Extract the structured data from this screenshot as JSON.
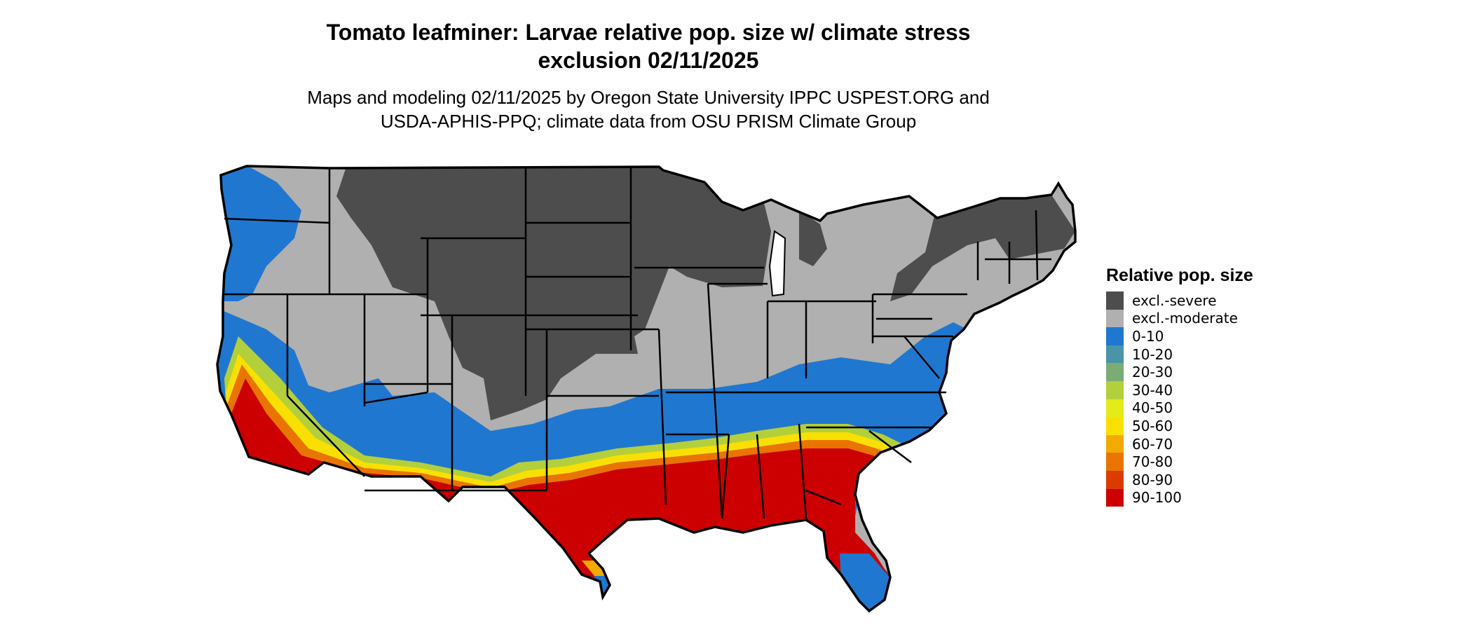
{
  "title_line1": "Tomato leafminer: Larvae relative pop. size w/ climate stress",
  "title_line2": "exclusion 02/11/2025",
  "subtitle_line1": "Maps and modeling 02/11/2025 by Oregon State University IPPC USPEST.ORG and",
  "subtitle_line2": "USDA-APHIS-PPQ; climate data from OSU PRISM Climate Group",
  "legend": {
    "title": "Relative pop. size",
    "items": [
      {
        "label": "excl.-severe",
        "color": "#4d4d4d"
      },
      {
        "label": "excl.-moderate",
        "color": "#b0b0b0"
      },
      {
        "label": "0-10",
        "color": "#1f77d0"
      },
      {
        "label": "10-20",
        "color": "#4a94a8"
      },
      {
        "label": "20-30",
        "color": "#79ad74"
      },
      {
        "label": "30-40",
        "color": "#b3cf3c"
      },
      {
        "label": "40-50",
        "color": "#e3ec1a"
      },
      {
        "label": "50-60",
        "color": "#f9e000"
      },
      {
        "label": "60-70",
        "color": "#f2aa00"
      },
      {
        "label": "70-80",
        "color": "#e97400"
      },
      {
        "label": "80-90",
        "color": "#dc3b00"
      },
      {
        "label": "90-100",
        "color": "#cc0000"
      }
    ]
  }
}
